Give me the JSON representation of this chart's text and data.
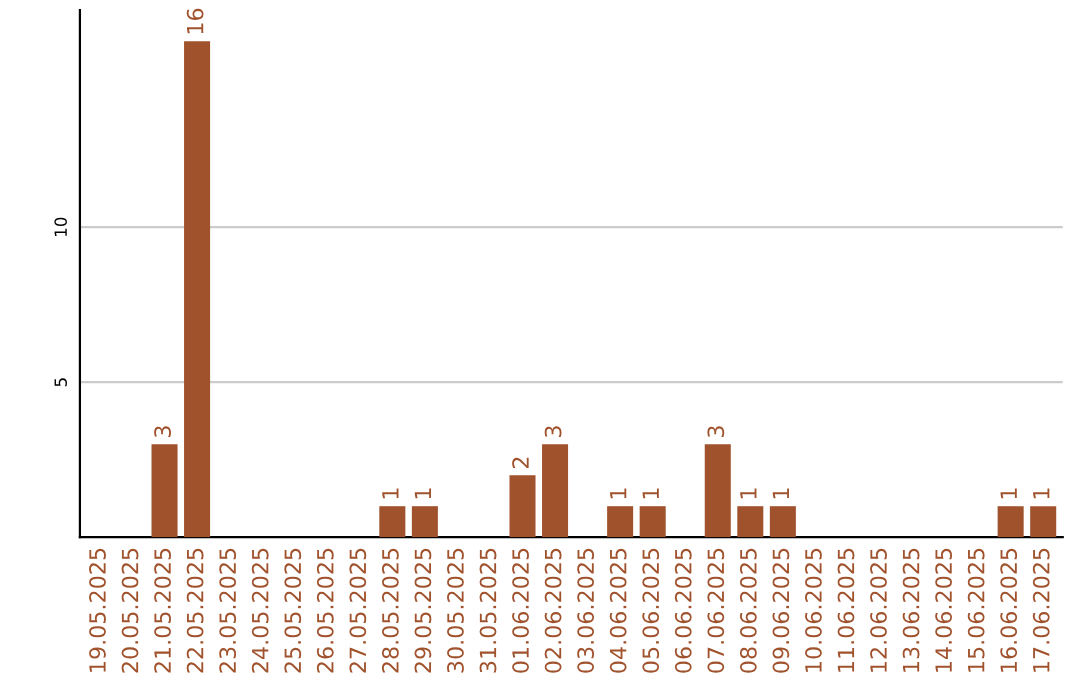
{
  "chart_data": {
    "type": "bar",
    "categories": [
      "19.05.2025",
      "20.05.2025",
      "21.05.2025",
      "22.05.2025",
      "23.05.2025",
      "24.05.2025",
      "25.05.2025",
      "26.05.2025",
      "27.05.2025",
      "28.05.2025",
      "29.05.2025",
      "30.05.2025",
      "31.05.2025",
      "01.06.2025",
      "02.06.2025",
      "03.06.2025",
      "04.06.2025",
      "05.06.2025",
      "06.06.2025",
      "07.06.2025",
      "08.06.2025",
      "09.06.2025",
      "10.06.2025",
      "11.06.2025",
      "12.06.2025",
      "13.06.2025",
      "14.06.2025",
      "15.06.2025",
      "16.06.2025",
      "17.06.2025"
    ],
    "values": [
      0,
      0,
      3,
      16,
      0,
      0,
      0,
      0,
      0,
      1,
      1,
      0,
      0,
      2,
      3,
      0,
      1,
      1,
      0,
      3,
      1,
      1,
      0,
      0,
      0,
      0,
      0,
      0,
      1,
      1
    ],
    "value_labels": [
      null,
      null,
      "3",
      "16",
      null,
      null,
      null,
      null,
      null,
      "1",
      "1",
      null,
      null,
      "2",
      "3",
      null,
      "1",
      "1",
      null,
      "3",
      "1",
      "1",
      null,
      null,
      null,
      null,
      null,
      null,
      "1",
      "1"
    ],
    "color": "#a0522d",
    "ylim": [
      0,
      17
    ],
    "yticks": [
      5,
      10
    ],
    "grid": "y"
  }
}
